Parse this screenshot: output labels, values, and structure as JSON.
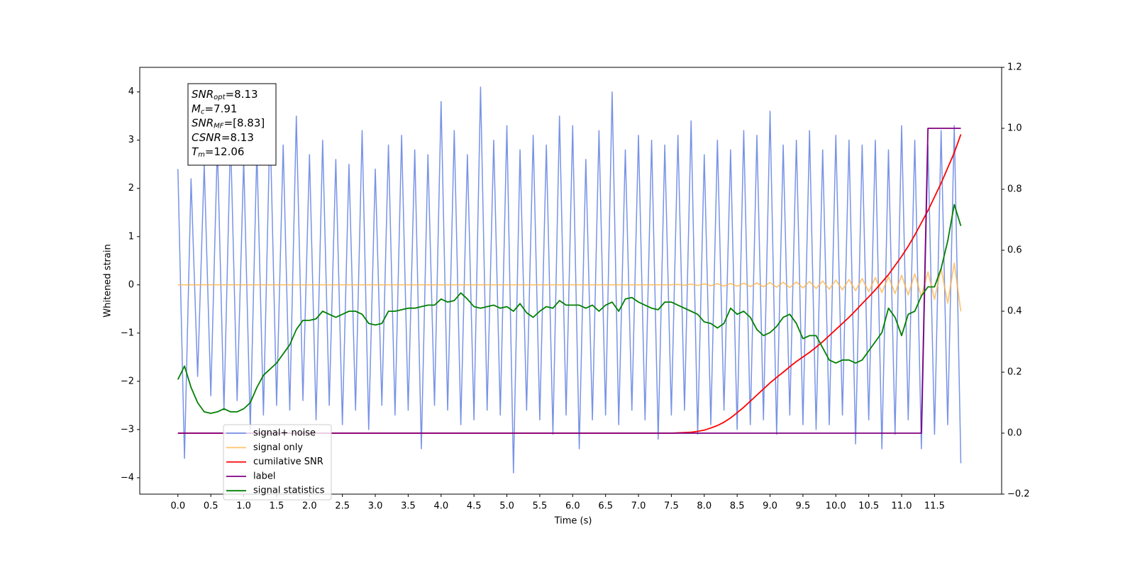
{
  "chart_data": {
    "type": "line",
    "x_label": "Time (s)",
    "y_label": "Whitened strain",
    "x": [
      0,
      0.1,
      0.2,
      0.3,
      0.4,
      0.5,
      0.6,
      0.7,
      0.8,
      0.9,
      1,
      1.1,
      1.2,
      1.3,
      1.4,
      1.5,
      1.6,
      1.7,
      1.8,
      1.9,
      2,
      2.1,
      2.2,
      2.3,
      2.4,
      2.5,
      2.6,
      2.7,
      2.8,
      2.9,
      3,
      3.1,
      3.2,
      3.3,
      3.4,
      3.5,
      3.6,
      3.7,
      3.8,
      3.9,
      4,
      4.1,
      4.2,
      4.3,
      4.4,
      4.5,
      4.6,
      4.7,
      4.8,
      4.9,
      5,
      5.1,
      5.2,
      5.3,
      5.4,
      5.5,
      5.6,
      5.7,
      5.8,
      5.9,
      6,
      6.1,
      6.2,
      6.3,
      6.4,
      6.5,
      6.6,
      6.7,
      6.8,
      6.9,
      7,
      7.1,
      7.2,
      7.3,
      7.4,
      7.5,
      7.6,
      7.7,
      7.8,
      7.9,
      8,
      8.1,
      8.2,
      8.3,
      8.4,
      8.5,
      8.6,
      8.7,
      8.8,
      8.9,
      9,
      9.1,
      9.2,
      9.3,
      9.4,
      9.5,
      9.6,
      9.7,
      9.8,
      9.9,
      10,
      10.1,
      10.2,
      10.3,
      10.4,
      10.5,
      10.6,
      10.7,
      10.8,
      10.9,
      11,
      11.1,
      11.2,
      11.3,
      11.4,
      11.5,
      11.6,
      11.7,
      11.8,
      11.9
    ],
    "series": [
      {
        "name": "signal+ noise",
        "color": "#7893e6",
        "values": [
          2.4,
          -3.6,
          2.2,
          -1.9,
          2.5,
          -2.3,
          2.9,
          -2.6,
          3.1,
          -2.4,
          2.6,
          -3.0,
          2.8,
          -2.7,
          3.4,
          -2.5,
          2.9,
          -2.6,
          3.5,
          -2.4,
          2.7,
          -2.8,
          3.0,
          -2.5,
          2.6,
          -2.9,
          2.5,
          -2.6,
          3.2,
          -3.0,
          2.4,
          -2.5,
          2.9,
          -2.7,
          3.1,
          -2.6,
          2.8,
          -3.4,
          2.7,
          -2.5,
          3.8,
          -2.6,
          3.2,
          -2.9,
          2.7,
          -2.8,
          4.1,
          -2.6,
          3.0,
          -2.7,
          3.3,
          -3.9,
          2.8,
          -2.6,
          3.1,
          -2.8,
          2.9,
          -3.1,
          3.5,
          -2.7,
          3.3,
          -3.4,
          2.6,
          -2.8,
          3.2,
          -2.7,
          4.0,
          -2.9,
          2.8,
          -2.6,
          3.1,
          -2.8,
          3.0,
          -3.2,
          2.9,
          -2.7,
          3.1,
          -2.6,
          3.4,
          -3.1,
          2.7,
          -2.9,
          3.0,
          -2.6,
          2.8,
          -3.0,
          3.2,
          -2.9,
          3.1,
          -2.8,
          3.6,
          -3.1,
          2.9,
          -2.7,
          3.0,
          -2.9,
          3.2,
          -3.0,
          2.8,
          -2.9,
          3.1,
          -2.7,
          3.0,
          -3.3,
          2.9,
          -2.8,
          3.0,
          -3.4,
          2.8,
          -3.1,
          3.3,
          -2.8,
          3.0,
          -3.4,
          2.9,
          -3.1,
          3.2,
          -2.9,
          3.3,
          -3.7
        ]
      },
      {
        "name": "signal only",
        "color": "#ffb347",
        "values": [
          0,
          0,
          0,
          0,
          0,
          0,
          0,
          0,
          0,
          0,
          0,
          0,
          0,
          0,
          0,
          0,
          0,
          0,
          0,
          0,
          0,
          0,
          0,
          0,
          0,
          0,
          0,
          0,
          0,
          0,
          0,
          0,
          0,
          0,
          0,
          0,
          0,
          0,
          0,
          0,
          0,
          0,
          0,
          0,
          0,
          0,
          0,
          0,
          0,
          0,
          0,
          0,
          0,
          0,
          0,
          0,
          0,
          0,
          0,
          0,
          0,
          0,
          0,
          0,
          0,
          0,
          0,
          0,
          0,
          0,
          0,
          0,
          0,
          0,
          0,
          0,
          0.01,
          -0.01,
          0.015,
          -0.015,
          0.02,
          -0.02,
          0.025,
          -0.025,
          0.03,
          -0.03,
          0.035,
          -0.035,
          0.04,
          -0.04,
          0.05,
          -0.05,
          0.055,
          -0.055,
          0.06,
          -0.065,
          0.07,
          -0.075,
          0.08,
          -0.09,
          0.1,
          -0.105,
          0.11,
          -0.12,
          0.13,
          -0.14,
          0.15,
          -0.16,
          0.17,
          -0.18,
          0.2,
          -0.21,
          0.23,
          -0.25,
          0.27,
          -0.3,
          0.34,
          -0.38,
          0.45,
          -0.55
        ]
      },
      {
        "name": "cumilative SNR",
        "color": "#ff0000",
        "axis": "y2",
        "values": [
          0,
          0,
          0,
          0,
          0,
          0,
          0,
          0,
          0,
          0,
          0,
          0,
          0,
          0,
          0,
          0,
          0,
          0,
          0,
          0,
          0,
          0,
          0,
          0,
          0,
          0,
          0,
          0,
          0,
          0,
          0,
          0,
          0,
          0,
          0,
          0,
          0,
          0,
          0,
          0,
          0,
          0,
          0,
          0,
          0,
          0,
          0,
          0,
          0,
          0,
          0,
          0,
          0,
          0,
          0,
          0,
          0,
          0,
          0,
          0,
          0,
          0,
          0,
          0,
          0,
          0,
          0,
          0,
          0,
          0,
          0,
          0,
          0,
          0,
          0,
          0,
          0.001,
          0.002,
          0.003,
          0.006,
          0.01,
          0.017,
          0.025,
          0.036,
          0.05,
          0.067,
          0.085,
          0.105,
          0.125,
          0.145,
          0.165,
          0.183,
          0.2,
          0.218,
          0.235,
          0.25,
          0.265,
          0.282,
          0.3,
          0.32,
          0.34,
          0.36,
          0.38,
          0.402,
          0.425,
          0.447,
          0.47,
          0.495,
          0.52,
          0.55,
          0.58,
          0.613,
          0.65,
          0.69,
          0.73,
          0.775,
          0.82,
          0.87,
          0.92,
          0.98
        ]
      },
      {
        "name": "label",
        "color": "#800080",
        "axis": "y2",
        "values": [
          0,
          0,
          0,
          0,
          0,
          0,
          0,
          0,
          0,
          0,
          0,
          0,
          0,
          0,
          0,
          0,
          0,
          0,
          0,
          0,
          0,
          0,
          0,
          0,
          0,
          0,
          0,
          0,
          0,
          0,
          0,
          0,
          0,
          0,
          0,
          0,
          0,
          0,
          0,
          0,
          0,
          0,
          0,
          0,
          0,
          0,
          0,
          0,
          0,
          0,
          0,
          0,
          0,
          0,
          0,
          0,
          0,
          0,
          0,
          0,
          0,
          0,
          0,
          0,
          0,
          0,
          0,
          0,
          0,
          0,
          0,
          0,
          0,
          0,
          0,
          0,
          0,
          0,
          0,
          0,
          0,
          0,
          0,
          0,
          0,
          0,
          0,
          0,
          0,
          0,
          0,
          0,
          0,
          0,
          0,
          0,
          0,
          0,
          0,
          0,
          0,
          0,
          0,
          0,
          0,
          0,
          0,
          0,
          0,
          0,
          0,
          0,
          0,
          0,
          1,
          1,
          1,
          1,
          1,
          1
        ]
      },
      {
        "name": "signal statistics",
        "color": "#008000",
        "axis": "y2",
        "values": [
          0.176,
          0.22,
          0.15,
          0.1,
          0.07,
          0.065,
          0.07,
          0.08,
          0.07,
          0.07,
          0.08,
          0.1,
          0.15,
          0.19,
          0.21,
          0.23,
          0.26,
          0.29,
          0.34,
          0.37,
          0.37,
          0.375,
          0.4,
          0.39,
          0.38,
          0.39,
          0.4,
          0.4,
          0.39,
          0.36,
          0.355,
          0.36,
          0.4,
          0.4,
          0.405,
          0.41,
          0.41,
          0.415,
          0.42,
          0.42,
          0.44,
          0.43,
          0.435,
          0.46,
          0.44,
          0.415,
          0.41,
          0.415,
          0.42,
          0.41,
          0.415,
          0.4,
          0.425,
          0.395,
          0.38,
          0.4,
          0.415,
          0.41,
          0.435,
          0.42,
          0.42,
          0.42,
          0.41,
          0.42,
          0.4,
          0.42,
          0.43,
          0.4,
          0.44,
          0.445,
          0.43,
          0.42,
          0.41,
          0.405,
          0.43,
          0.43,
          0.42,
          0.41,
          0.4,
          0.39,
          0.365,
          0.36,
          0.345,
          0.36,
          0.41,
          0.39,
          0.4,
          0.38,
          0.34,
          0.32,
          0.33,
          0.35,
          0.38,
          0.39,
          0.36,
          0.31,
          0.32,
          0.32,
          0.28,
          0.24,
          0.23,
          0.24,
          0.24,
          0.23,
          0.24,
          0.27,
          0.3,
          0.33,
          0.41,
          0.38,
          0.32,
          0.39,
          0.4,
          0.45,
          0.48,
          0.48,
          0.54,
          0.63,
          0.75,
          0.68
        ]
      }
    ],
    "xlim": [
      -0.58,
      12.52
    ],
    "xticks": [
      {
        "value": 0,
        "label": "0.0"
      },
      0.5,
      {
        "value": 1,
        "label": "1.0"
      },
      1.5,
      {
        "value": 2,
        "label": "2.0"
      },
      2.5,
      {
        "value": 3,
        "label": "3.0"
      },
      3.5,
      {
        "value": 4,
        "label": "4.0"
      },
      4.5,
      {
        "value": 5,
        "label": "5.0"
      },
      5.5,
      {
        "value": 6,
        "label": "6.0"
      },
      6.5,
      {
        "value": 7,
        "label": "7.0"
      },
      7.5,
      {
        "value": 8,
        "label": "8.0"
      },
      8.5,
      {
        "value": 9,
        "label": "9.0"
      },
      9.5,
      {
        "value": 10,
        "label": "10.0"
      },
      10.5,
      {
        "value": 11,
        "label": "11.0"
      },
      11.5
    ],
    "ylim": [
      -4.34,
      4.51
    ],
    "yticks": [
      {
        "value": -4,
        "label": "−4"
      },
      {
        "value": -3,
        "label": "−3"
      },
      {
        "value": -2,
        "label": "−2"
      },
      {
        "value": -1,
        "label": "−1"
      },
      0,
      1,
      2,
      3,
      4
    ],
    "y2lim": [
      -0.2,
      1.2
    ],
    "y2ticks": [
      {
        "value": -0.2,
        "label": "−0.2"
      },
      {
        "value": 0,
        "label": "0.0"
      },
      0.2,
      0.4,
      0.6,
      0.8,
      {
        "value": 1,
        "label": "1.0"
      },
      1.2
    ],
    "legend": "lower left",
    "annotation": [
      {
        "main": "SNR",
        "sub": "opt",
        "rest": "=8.13"
      },
      {
        "main": "M",
        "sub": "c",
        "rest": "=7.91"
      },
      {
        "main": "SNR",
        "sub": "MF",
        "rest": "=[8.83]"
      },
      {
        "main": "CSNR",
        "rest": "=8.13"
      },
      {
        "main": "T",
        "sub": "m",
        "rest": "=12.06"
      }
    ]
  }
}
